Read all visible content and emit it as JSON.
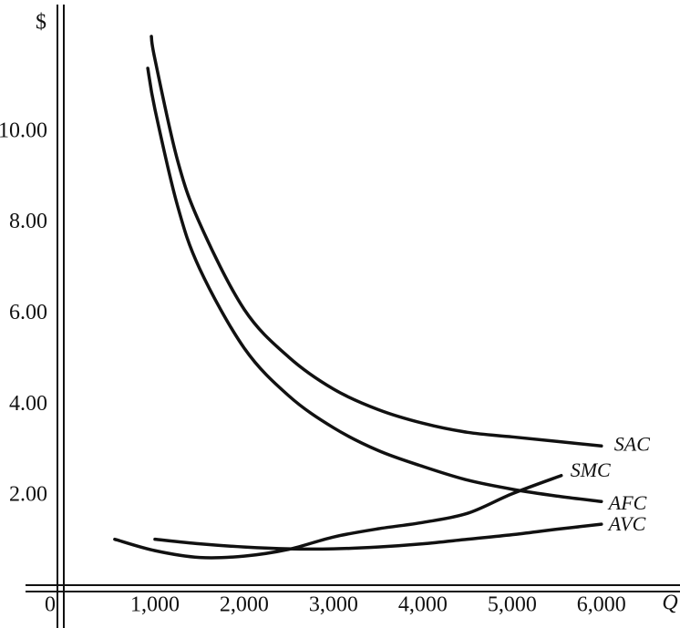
{
  "chart_data": {
    "type": "line",
    "x_label": "Q",
    "y_label": "$",
    "xlim": [
      -735,
      6880
    ],
    "ylim": [
      -0.9,
      12.9
    ],
    "xticks": [
      0,
      {
        "value": 1000,
        "label": "1,000"
      },
      {
        "value": 2000,
        "label": "2,000"
      },
      {
        "value": 3000,
        "label": "3,000"
      },
      {
        "value": 4000,
        "label": "4,000"
      },
      {
        "value": 5000,
        "label": "5,000"
      },
      {
        "value": 6000,
        "label": "6,000"
      }
    ],
    "yticks": [
      {
        "value": 2,
        "label": "2.00"
      },
      {
        "value": 4,
        "label": "4.00"
      },
      {
        "value": 6,
        "label": "6.00"
      },
      {
        "value": 8,
        "label": "8.00"
      },
      {
        "value": 10,
        "label": "10.00"
      }
    ],
    "series": [
      {
        "name": "SAC",
        "color": "#111111",
        "x": [
          960,
          1000,
          1250,
          1500,
          2000,
          2500,
          3000,
          3500,
          4000,
          4500,
          5000,
          5500,
          6000
        ],
        "values": [
          12.1,
          11.6,
          9.4,
          8.0,
          6.1,
          5.05,
          4.35,
          3.9,
          3.6,
          3.4,
          3.3,
          3.2,
          3.1
        ]
      },
      {
        "name": "SMC",
        "color": "#111111",
        "x": [
          550,
          1000,
          1500,
          2000,
          2500,
          3000,
          3500,
          4000,
          4500,
          5000,
          5550
        ],
        "values": [
          1.05,
          0.8,
          0.65,
          0.68,
          0.83,
          1.1,
          1.28,
          1.42,
          1.62,
          2.05,
          2.45
        ]
      },
      {
        "name": "AFC",
        "color": "#111111",
        "x": [
          920,
          1000,
          1250,
          1500,
          2000,
          2500,
          3000,
          3500,
          4000,
          4500,
          5000,
          5500,
          6000
        ],
        "values": [
          11.4,
          10.5,
          8.4,
          7.0,
          5.25,
          4.2,
          3.5,
          3.0,
          2.65,
          2.35,
          2.15,
          2.0,
          1.88
        ]
      },
      {
        "name": "AVC",
        "color": "#111111",
        "x": [
          1000,
          1500,
          2000,
          2500,
          3000,
          3500,
          4000,
          4500,
          5000,
          5500,
          6000
        ],
        "values": [
          1.05,
          0.95,
          0.88,
          0.84,
          0.84,
          0.88,
          0.95,
          1.05,
          1.15,
          1.27,
          1.38
        ]
      }
    ]
  }
}
